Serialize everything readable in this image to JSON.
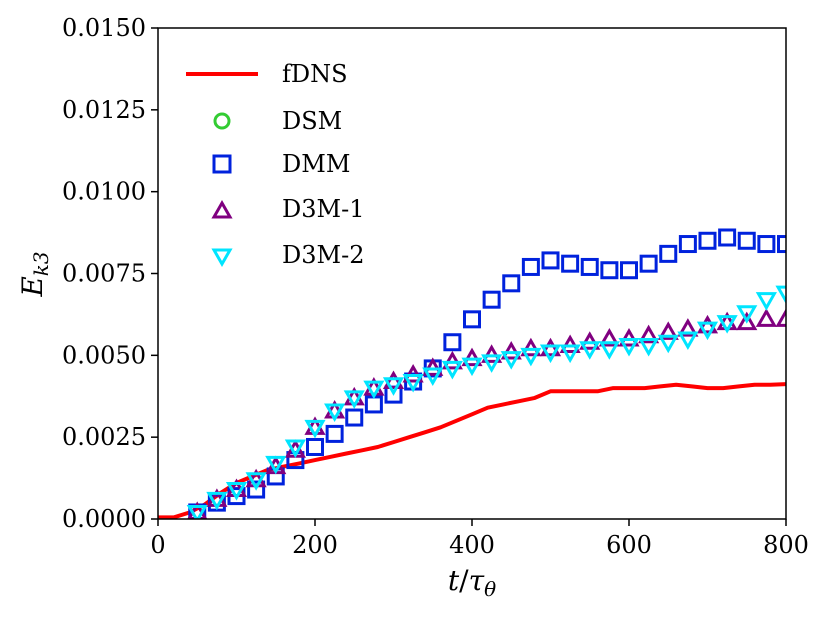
{
  "chart_data": {
    "type": "line",
    "title": "",
    "xlabel": "t/τθ",
    "ylabel": "Ek3",
    "xlabel_parts": {
      "t": "t",
      "slash": "/",
      "tau": "τ",
      "sub": "θ"
    },
    "ylabel_parts": {
      "E": "E",
      "sub": "k3"
    },
    "xlim": [
      0,
      800
    ],
    "ylim": [
      0,
      0.015
    ],
    "xticks": [
      0,
      200,
      400,
      600,
      800
    ],
    "xtick_labels": [
      "0",
      "200",
      "400",
      "600",
      "800"
    ],
    "yticks": [
      0,
      0.0025,
      0.005,
      0.0075,
      0.01,
      0.0125,
      0.015
    ],
    "ytick_labels": [
      "0.0000",
      "0.0025",
      "0.0050",
      "0.0075",
      "0.0100",
      "0.0125",
      "0.0150"
    ],
    "legend_position": "top-left",
    "grid": false,
    "series": [
      {
        "name": "fDNS",
        "style": "line",
        "color": "#ff0000",
        "x": [
          0,
          20,
          40,
          60,
          80,
          100,
          120,
          140,
          160,
          180,
          200,
          220,
          240,
          260,
          280,
          300,
          320,
          340,
          360,
          380,
          400,
          420,
          440,
          460,
          480,
          500,
          520,
          540,
          560,
          580,
          600,
          620,
          640,
          660,
          680,
          700,
          720,
          740,
          760,
          780,
          800
        ],
        "y": [
          5e-05,
          5e-05,
          0.0002,
          0.00045,
          0.0008,
          0.0011,
          0.0013,
          0.0015,
          0.0016,
          0.0017,
          0.0018,
          0.0019,
          0.002,
          0.0021,
          0.0022,
          0.00235,
          0.0025,
          0.00265,
          0.0028,
          0.003,
          0.0032,
          0.0034,
          0.0035,
          0.0036,
          0.0037,
          0.0039,
          0.0039,
          0.0039,
          0.0039,
          0.004,
          0.004,
          0.004,
          0.00405,
          0.0041,
          0.00405,
          0.004,
          0.004,
          0.00405,
          0.0041,
          0.0041,
          0.00412
        ]
      },
      {
        "name": "DSM",
        "style": "circle",
        "color": "#33cc33",
        "x": [],
        "y": []
      },
      {
        "name": "DMM",
        "style": "square",
        "color": "#0022dd",
        "x": [
          50,
          75,
          100,
          125,
          150,
          175,
          200,
          225,
          250,
          275,
          300,
          325,
          350,
          375,
          400,
          425,
          450,
          475,
          500,
          525,
          550,
          575,
          600,
          625,
          650,
          675,
          700,
          725,
          750,
          775,
          800
        ],
        "y": [
          0.0002,
          0.0005,
          0.0007,
          0.0009,
          0.0013,
          0.0018,
          0.0022,
          0.0026,
          0.0031,
          0.0035,
          0.0038,
          0.0042,
          0.0046,
          0.0054,
          0.0061,
          0.0067,
          0.0072,
          0.0077,
          0.0079,
          0.0078,
          0.0077,
          0.0076,
          0.0076,
          0.0078,
          0.0081,
          0.0084,
          0.0085,
          0.0086,
          0.0085,
          0.0084,
          0.0084
        ]
      },
      {
        "name": "D3M-1",
        "style": "triangle-up",
        "color": "#800080",
        "x": [
          50,
          75,
          100,
          125,
          150,
          175,
          200,
          225,
          250,
          275,
          300,
          325,
          350,
          375,
          400,
          425,
          450,
          475,
          500,
          525,
          550,
          575,
          600,
          625,
          650,
          675,
          700,
          725,
          750,
          775,
          800
        ],
        "y": [
          0.0002,
          0.0006,
          0.0009,
          0.0012,
          0.0016,
          0.0021,
          0.0028,
          0.0033,
          0.0037,
          0.004,
          0.0042,
          0.0044,
          0.0046,
          0.0048,
          0.0049,
          0.005,
          0.0051,
          0.0052,
          0.0052,
          0.0053,
          0.0054,
          0.0055,
          0.0055,
          0.0056,
          0.0057,
          0.0058,
          0.0059,
          0.006,
          0.006,
          0.0061,
          0.0061
        ]
      },
      {
        "name": "D3M-2",
        "style": "triangle-down",
        "color": "#00e5ff",
        "x": [
          50,
          75,
          100,
          125,
          150,
          175,
          200,
          225,
          250,
          275,
          300,
          325,
          350,
          375,
          400,
          425,
          450,
          475,
          500,
          525,
          550,
          575,
          600,
          625,
          650,
          675,
          700,
          725,
          750,
          775,
          800
        ],
        "y": [
          0.0002,
          0.0006,
          0.0009,
          0.0012,
          0.0017,
          0.0022,
          0.0028,
          0.0033,
          0.0037,
          0.004,
          0.0041,
          0.0042,
          0.0044,
          0.0046,
          0.0047,
          0.0048,
          0.0049,
          0.005,
          0.0051,
          0.0051,
          0.0052,
          0.0052,
          0.0053,
          0.0053,
          0.0054,
          0.0055,
          0.0058,
          0.006,
          0.0063,
          0.0067,
          0.0069
        ]
      }
    ]
  }
}
